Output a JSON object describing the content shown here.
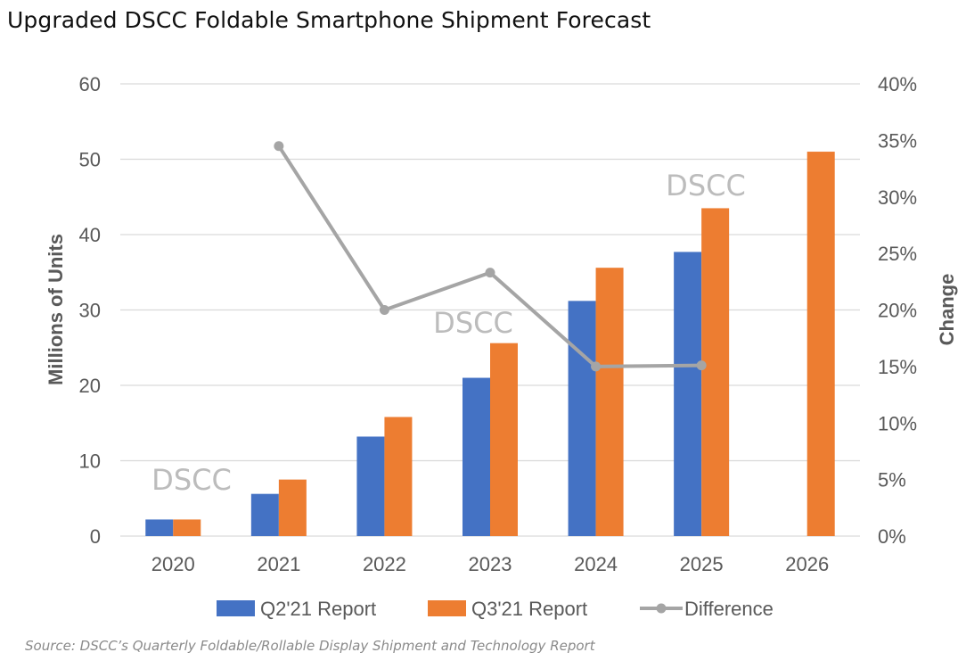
{
  "title": "Upgraded DSCC Foldable Smartphone Shipment Forecast",
  "source": "Source: DSCC’s Quarterly Foldable/Rollable Display Shipment and Technology Report",
  "watermark": "DSCC",
  "colors": {
    "q2": "#4472c4",
    "q3": "#ed7d31",
    "diff": "#a5a5a5",
    "grid": "#d9d9d9",
    "text": "#595959"
  },
  "chart_data": {
    "type": "bar",
    "categories": [
      "2020",
      "2021",
      "2022",
      "2023",
      "2024",
      "2025",
      "2026"
    ],
    "series": [
      {
        "name": "Q2'21 Report",
        "kind": "bar",
        "axis": "left",
        "values": [
          2.2,
          5.6,
          13.2,
          21.0,
          31.2,
          37.7,
          null
        ]
      },
      {
        "name": "Q3'21 Report",
        "kind": "bar",
        "axis": "left",
        "values": [
          2.2,
          7.5,
          15.8,
          25.6,
          35.6,
          43.5,
          51.0
        ]
      },
      {
        "name": "Difference",
        "kind": "line",
        "axis": "right",
        "values": [
          null,
          0.345,
          0.2,
          0.233,
          0.15,
          0.151,
          null
        ]
      }
    ],
    "ylabel": "Millions of Units",
    "y2label": "Change",
    "ylim": [
      0,
      60
    ],
    "yticks": [
      "0",
      "10",
      "20",
      "30",
      "40",
      "50",
      "60"
    ],
    "y2lim": [
      0,
      0.4
    ],
    "y2ticks": [
      "0%",
      "5%",
      "10%",
      "15%",
      "20%",
      "25%",
      "30%",
      "35%",
      "40%"
    ],
    "grid": true,
    "legend_position": "bottom"
  }
}
